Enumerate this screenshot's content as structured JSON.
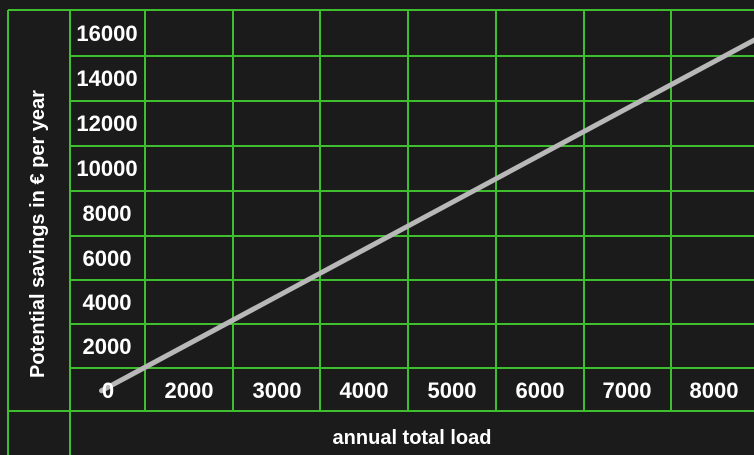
{
  "chart_data": {
    "type": "line",
    "title": "",
    "xlabel": "annual total load",
    "ylabel": "Potential savings in € per year",
    "x_ticks": [
      "0",
      "2000",
      "3000",
      "4000",
      "5000",
      "6000",
      "7000",
      "8000"
    ],
    "y_ticks": [
      "16000",
      "14000",
      "12000",
      "10000",
      "8000",
      "6000",
      "4000",
      "2000"
    ],
    "x": [
      1000,
      8800
    ],
    "y": [
      0,
      16400
    ],
    "grid": true,
    "colors": {
      "background": "#1b1b1b",
      "grid": "#3fbf2f",
      "line": "#b8b8b8",
      "text": "#ffffff"
    }
  }
}
